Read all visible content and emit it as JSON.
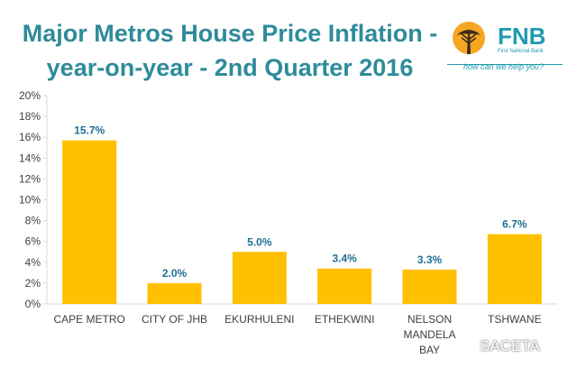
{
  "title_lines": [
    "Major Metros House Price Inflation -",
    "year-on-year - 2nd Quarter 2016"
  ],
  "logo": {
    "name": "FNB",
    "subtitle": "First National Bank",
    "tagline": "how can we help you?"
  },
  "watermark": "SACETA",
  "colors": {
    "title": "#2e8b9a",
    "bar": "#ffc000",
    "label": "#1f6f93",
    "axis": "#404040",
    "grid": "#d9d9d9"
  },
  "chart_data": {
    "type": "bar",
    "categories": [
      [
        "CAPE METRO"
      ],
      [
        "CITY OF JHB"
      ],
      [
        "EKURHULENI"
      ],
      [
        "ETHEKWINI"
      ],
      [
        "NELSON",
        "MANDELA",
        "BAY"
      ],
      [
        "TSHWANE"
      ]
    ],
    "values": [
      15.7,
      2.0,
      5.0,
      3.4,
      3.3,
      6.7
    ],
    "data_labels": [
      "15.7%",
      "2.0%",
      "5.0%",
      "3.4%",
      "3.3%",
      "6.7%"
    ],
    "y_ticks": [
      "0%",
      "2%",
      "4%",
      "6%",
      "8%",
      "10%",
      "12%",
      "14%",
      "16%",
      "18%",
      "20%"
    ],
    "ylim": [
      0,
      20
    ],
    "grid": false,
    "legend": false
  }
}
